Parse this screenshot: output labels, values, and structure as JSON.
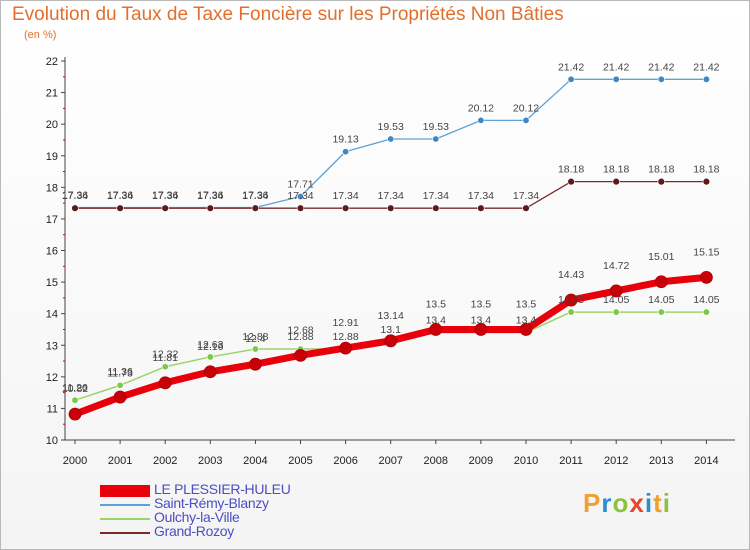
{
  "header": {
    "title": "Evolution du Taux de Taxe Foncière sur les Propriétés Non Bâties",
    "subtitle": "(en %)"
  },
  "logo": {
    "letters": [
      "P",
      "r",
      "o",
      "x",
      "i",
      "t",
      "i"
    ],
    "colors": [
      "#f0a030",
      "#2a8fd0",
      "#8ac43c",
      "#e8452c",
      "#2a8fd0",
      "#f0a030",
      "#8ac43c"
    ]
  },
  "chart_data": {
    "type": "line",
    "title": "Evolution du Taux de Taxe Foncière sur les Propriétés Non Bâties",
    "ylabel": "(en %)",
    "xlabel": "",
    "x": [
      "2000",
      "2001",
      "2002",
      "2003",
      "2004",
      "2005",
      "2006",
      "2007",
      "2008",
      "2009",
      "2010",
      "2011",
      "2012",
      "2013",
      "2014"
    ],
    "ylim": [
      10,
      22
    ],
    "yticks": [
      10,
      11,
      12,
      13,
      14,
      15,
      16,
      17,
      18,
      19,
      20,
      21,
      22
    ],
    "grid": false,
    "legend_position": "bottom-left",
    "series": [
      {
        "name": "LE PLESSIER-HULEU",
        "color": "#e8000b",
        "values": [
          10.82,
          11.36,
          11.81,
          12.16,
          12.4,
          12.68,
          12.91,
          13.14,
          13.5,
          13.5,
          13.5,
          14.43,
          14.72,
          15.01,
          15.15
        ],
        "labels": [
          "10.82",
          "11.36",
          "11.81",
          "12.16",
          "12.4",
          "12.68",
          "12.91",
          "13.14",
          "13.5",
          "13.5",
          "13.5",
          "14.43",
          "14.72",
          "15.01",
          "15.15"
        ]
      },
      {
        "name": "Saint-Rémy-Blanzy",
        "color": "#5ea1d6",
        "values": [
          17.36,
          17.36,
          17.36,
          17.36,
          17.36,
          17.71,
          19.13,
          19.53,
          19.53,
          20.12,
          20.12,
          21.42,
          21.42,
          21.42,
          21.42
        ],
        "labels": [
          "17.36",
          "17.36",
          "17.36",
          "17.36",
          "17.36",
          "17.71",
          "19.13",
          "19.53",
          "19.53",
          "20.12",
          "20.12",
          "21.42",
          "21.42",
          "21.42",
          "21.42"
        ]
      },
      {
        "name": "Oulchy-la-Ville",
        "color": "#98d66a",
        "values": [
          11.26,
          11.73,
          12.32,
          12.63,
          12.88,
          12.88,
          12.88,
          13.1,
          13.4,
          13.4,
          13.4,
          14.05,
          14.05,
          14.05,
          14.05
        ],
        "labels": [
          "11.26",
          "11.73",
          "12.32",
          "12.63",
          "12.88",
          "12.88",
          "12.88",
          "13.1",
          "13.4",
          "13.4",
          "13.4",
          "14.05",
          "14.05",
          "14.05",
          "14.05"
        ]
      },
      {
        "name": "Grand-Rozoy",
        "color": "#7a2a2a",
        "values": [
          17.34,
          17.34,
          17.34,
          17.34,
          17.34,
          17.34,
          17.34,
          17.34,
          17.34,
          17.34,
          17.34,
          18.18,
          18.18,
          18.18,
          18.18
        ],
        "labels": [
          "17.34",
          "17.34",
          "17.34",
          "17.34",
          "17.34",
          "17.34",
          "17.34",
          "17.34",
          "17.34",
          "17.34",
          "17.34",
          "18.18",
          "18.18",
          "18.18",
          "18.18"
        ]
      }
    ]
  }
}
